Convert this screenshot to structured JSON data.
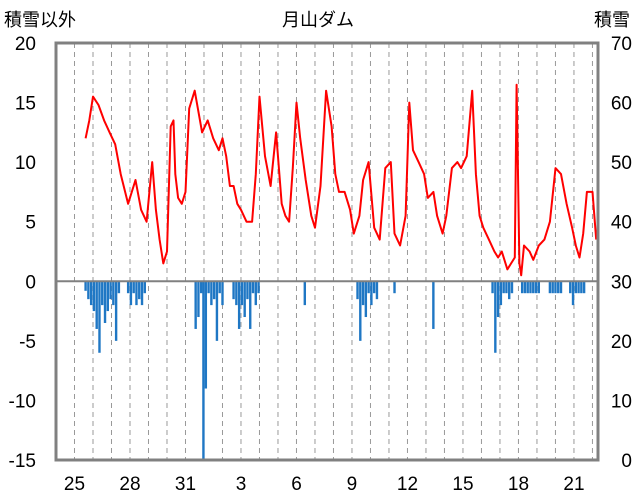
{
  "chart_data": {
    "type": "line+bar",
    "title": "月山ダム",
    "left_axis_label": "積雪以外",
    "right_axis_label": "積雪",
    "ylim_left": [
      -15,
      20
    ],
    "ylim_right": [
      0,
      70
    ],
    "left_ticks": [
      "20",
      "15",
      "10",
      "5",
      "0",
      "-5",
      "-10",
      "-15"
    ],
    "right_ticks": [
      "70",
      "60",
      "50",
      "40",
      "30",
      "20",
      "10",
      "0"
    ],
    "x_tick_labels": [
      "25",
      "28",
      "31",
      "3",
      "6",
      "9",
      "12",
      "15",
      "18",
      "21"
    ],
    "x_tick_days": [
      0,
      3,
      6,
      9,
      12,
      15,
      18,
      21,
      24,
      27
    ],
    "x_range_days": [
      -1,
      28.3
    ],
    "grid": "vertical dashed",
    "colors": {
      "line": "#ff0000",
      "bars": "#1f77c4",
      "snow_line": "#7030a0",
      "zero_line": "#808080",
      "grid": "#999999",
      "frame": "#808080"
    },
    "series": [
      {
        "type": "line",
        "axis": "left",
        "x": [
          0.6,
          0.8,
          1.0,
          1.3,
          1.6,
          1.9,
          2.2,
          2.5,
          2.9,
          3.3,
          3.6,
          3.9,
          4.2,
          4.4,
          4.6,
          4.8,
          5.0,
          5.2,
          5.35,
          5.45,
          5.6,
          5.8,
          6.0,
          6.2,
          6.5,
          6.9,
          7.2,
          7.5,
          7.8,
          8.0,
          8.2,
          8.4,
          8.6,
          8.8,
          9.0,
          9.3,
          9.6,
          9.8,
          10.0,
          10.3,
          10.6,
          10.9,
          11.2,
          11.4,
          11.6,
          11.8,
          12.0,
          12.2,
          12.5,
          12.8,
          13.0,
          13.3,
          13.6,
          13.9,
          14.1,
          14.3,
          14.6,
          14.9,
          15.1,
          15.4,
          15.6,
          15.9,
          16.2,
          16.5,
          16.8,
          17.1,
          17.3,
          17.6,
          17.9,
          18.1,
          18.3,
          18.6,
          18.9,
          19.1,
          19.4,
          19.6,
          19.9,
          20.1,
          20.4,
          20.7,
          20.9,
          21.2,
          21.5,
          21.7,
          21.9,
          22.1,
          22.4,
          22.7,
          22.9,
          23.1,
          23.4,
          23.6,
          23.8,
          23.9,
          24.05,
          24.15,
          24.3,
          24.6,
          24.8,
          25.1,
          25.4,
          25.7,
          26.0,
          26.3,
          26.6,
          26.9,
          27.1,
          27.3,
          27.5,
          27.7,
          28.0,
          28.2
        ],
        "values": [
          12.0,
          13.5,
          15.5,
          14.8,
          13.5,
          12.5,
          11.5,
          9.0,
          6.5,
          8.5,
          6.0,
          5.0,
          10.0,
          6.0,
          3.5,
          1.5,
          2.5,
          13.0,
          13.5,
          9.0,
          7.0,
          6.5,
          7.5,
          14.5,
          16.0,
          12.5,
          13.5,
          12.0,
          11.0,
          12.0,
          10.5,
          8.0,
          8.0,
          6.5,
          6.0,
          5.0,
          5.0,
          9.0,
          15.5,
          10.5,
          8.0,
          12.5,
          6.5,
          5.5,
          5.0,
          9.5,
          15.0,
          12.0,
          8.5,
          5.5,
          4.5,
          8.0,
          16.0,
          13.0,
          9.0,
          7.5,
          7.5,
          6.0,
          4.0,
          5.5,
          8.5,
          10.0,
          4.5,
          3.5,
          9.5,
          10.0,
          4.0,
          3.0,
          5.5,
          15.0,
          11.0,
          10.0,
          9.0,
          7.0,
          7.5,
          5.5,
          4.0,
          5.5,
          9.5,
          10.0,
          9.5,
          10.5,
          16.0,
          9.0,
          5.5,
          4.5,
          3.5,
          2.5,
          2.0,
          2.5,
          1.0,
          1.5,
          2.0,
          16.5,
          1.5,
          0.5,
          3.0,
          2.5,
          1.8,
          3.0,
          3.5,
          5.0,
          9.5,
          9.0,
          6.5,
          4.5,
          3.0,
          2.0,
          4.0,
          7.5,
          7.5,
          3.5
        ]
      },
      {
        "type": "bar",
        "axis": "left",
        "bars": [
          {
            "day": 0.6,
            "value": -0.8
          },
          {
            "day": 0.75,
            "value": -1.5
          },
          {
            "day": 0.9,
            "value": -2.0
          },
          {
            "day": 1.05,
            "value": -2.5
          },
          {
            "day": 1.2,
            "value": -4.0
          },
          {
            "day": 1.35,
            "value": -6.0
          },
          {
            "day": 1.5,
            "value": -2.0
          },
          {
            "day": 1.65,
            "value": -3.5
          },
          {
            "day": 1.8,
            "value": -2.5
          },
          {
            "day": 1.95,
            "value": -1.5
          },
          {
            "day": 2.1,
            "value": -2.0
          },
          {
            "day": 2.25,
            "value": -5.0
          },
          {
            "day": 2.4,
            "value": -1.0
          },
          {
            "day": 2.9,
            "value": -1.0
          },
          {
            "day": 3.05,
            "value": -2.0
          },
          {
            "day": 3.2,
            "value": -1.0
          },
          {
            "day": 3.35,
            "value": -2.0
          },
          {
            "day": 3.5,
            "value": -1.5
          },
          {
            "day": 3.65,
            "value": -2.0
          },
          {
            "day": 3.8,
            "value": -1.0
          },
          {
            "day": 6.55,
            "value": -4.0
          },
          {
            "day": 6.7,
            "value": -3.0
          },
          {
            "day": 6.85,
            "value": -1.0
          },
          {
            "day": 6.97,
            "value": -15.0
          },
          {
            "day": 7.1,
            "value": -9.0
          },
          {
            "day": 7.25,
            "value": -1.0
          },
          {
            "day": 7.4,
            "value": -2.0
          },
          {
            "day": 7.55,
            "value": -1.5
          },
          {
            "day": 7.7,
            "value": -5.0
          },
          {
            "day": 7.85,
            "value": -1.0
          },
          {
            "day": 8.0,
            "value": -2.0
          },
          {
            "day": 8.6,
            "value": -1.5
          },
          {
            "day": 8.75,
            "value": -2.0
          },
          {
            "day": 8.9,
            "value": -4.0
          },
          {
            "day": 9.05,
            "value": -2.0
          },
          {
            "day": 9.2,
            "value": -3.0
          },
          {
            "day": 9.35,
            "value": -1.5
          },
          {
            "day": 9.5,
            "value": -4.0
          },
          {
            "day": 9.65,
            "value": -1.0
          },
          {
            "day": 9.8,
            "value": -2.0
          },
          {
            "day": 9.95,
            "value": -1.0
          },
          {
            "day": 12.45,
            "value": -2.0
          },
          {
            "day": 15.3,
            "value": -1.5
          },
          {
            "day": 15.45,
            "value": -5.0
          },
          {
            "day": 15.6,
            "value": -2.0
          },
          {
            "day": 15.75,
            "value": -3.0
          },
          {
            "day": 15.9,
            "value": -1.0
          },
          {
            "day": 16.05,
            "value": -2.0
          },
          {
            "day": 16.2,
            "value": -1.0
          },
          {
            "day": 16.35,
            "value": -1.5
          },
          {
            "day": 17.3,
            "value": -1.0
          },
          {
            "day": 19.4,
            "value": -4.0
          },
          {
            "day": 22.6,
            "value": -1.0
          },
          {
            "day": 22.75,
            "value": -6.0
          },
          {
            "day": 22.9,
            "value": -3.0
          },
          {
            "day": 23.05,
            "value": -2.0
          },
          {
            "day": 23.2,
            "value": -1.0
          },
          {
            "day": 23.35,
            "value": -1.0
          },
          {
            "day": 23.5,
            "value": -1.5
          },
          {
            "day": 23.65,
            "value": -1.0
          },
          {
            "day": 24.2,
            "value": -1.0
          },
          {
            "day": 24.35,
            "value": -1.0
          },
          {
            "day": 24.5,
            "value": -1.0
          },
          {
            "day": 24.65,
            "value": -1.0
          },
          {
            "day": 24.8,
            "value": -1.0
          },
          {
            "day": 24.95,
            "value": -1.0
          },
          {
            "day": 25.1,
            "value": -1.0
          },
          {
            "day": 25.7,
            "value": -1.0
          },
          {
            "day": 25.85,
            "value": -1.0
          },
          {
            "day": 26.0,
            "value": -1.0
          },
          {
            "day": 26.15,
            "value": -1.0
          },
          {
            "day": 26.3,
            "value": -1.0
          },
          {
            "day": 26.8,
            "value": -1.0
          },
          {
            "day": 26.95,
            "value": -2.0
          },
          {
            "day": 27.1,
            "value": -1.0
          },
          {
            "day": 27.25,
            "value": -1.0
          },
          {
            "day": 27.4,
            "value": -1.0
          },
          {
            "day": 27.55,
            "value": -1.0
          }
        ]
      },
      {
        "type": "line",
        "axis": "right",
        "x": [
          0.5,
          28.2
        ],
        "values": [
          0,
          0
        ]
      }
    ]
  }
}
